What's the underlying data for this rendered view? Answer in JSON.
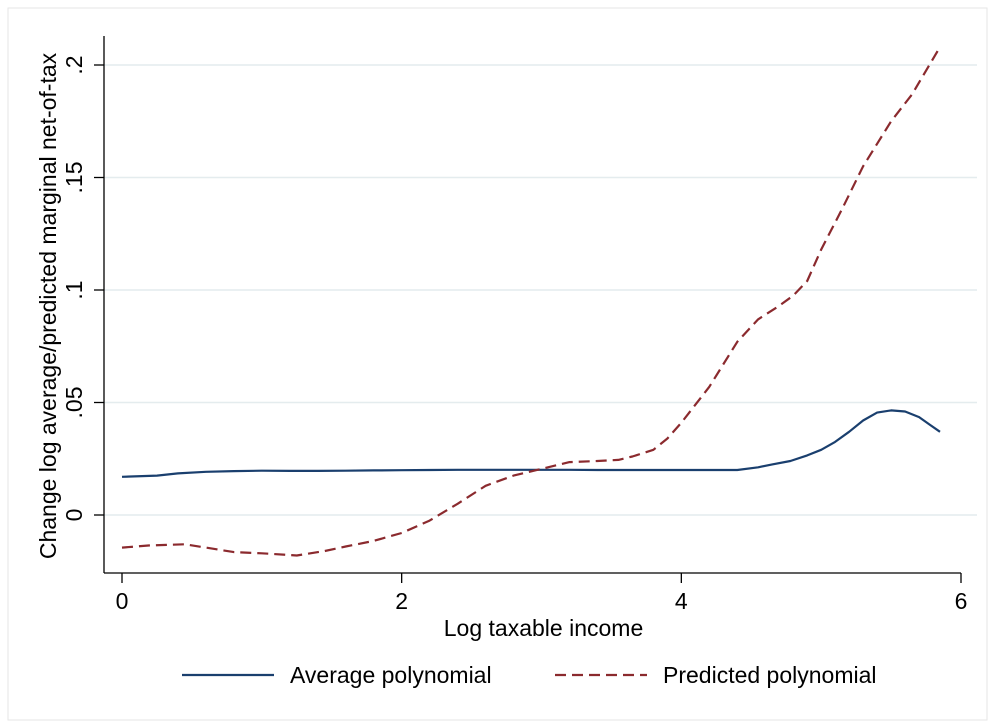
{
  "chart_data": {
    "type": "line",
    "title": "",
    "xlabel": "Log taxable income",
    "ylabel": "Change log average/predicted marginal net-of-tax",
    "xlim": [
      0,
      6
    ],
    "ylim": [
      -0.025,
      0.213
    ],
    "x_ticks": [
      {
        "value": 0,
        "label": "0"
      },
      {
        "value": 2,
        "label": "2"
      },
      {
        "value": 4,
        "label": "4"
      },
      {
        "value": 6,
        "label": "6"
      }
    ],
    "y_ticks": [
      {
        "value": 0,
        "label": "0"
      },
      {
        "value": 0.05,
        "label": ".05"
      },
      {
        "value": 0.1,
        "label": ".1"
      },
      {
        "value": 0.15,
        "label": ".15"
      },
      {
        "value": 0.2,
        "label": ".2"
      }
    ],
    "grid": true,
    "legend_position": "bottom",
    "series": [
      {
        "name": "Average polynomial",
        "color": "#1a3f6e",
        "style": "solid",
        "x": [
          0,
          0.25,
          0.4,
          0.6,
          0.8,
          1.0,
          1.2,
          1.4,
          1.6,
          1.8,
          2.0,
          2.2,
          2.4,
          2.6,
          2.8,
          3.0,
          3.2,
          3.4,
          3.6,
          3.8,
          4.0,
          4.2,
          4.4,
          4.55,
          4.65,
          4.78,
          4.9,
          5.0,
          5.1,
          5.2,
          5.3,
          5.4,
          5.5,
          5.6,
          5.7,
          5.78,
          5.85
        ],
        "y": [
          0.017,
          0.0175,
          0.0185,
          0.0192,
          0.0195,
          0.0197,
          0.0196,
          0.0196,
          0.0197,
          0.0198,
          0.0199,
          0.02,
          0.0201,
          0.0201,
          0.0201,
          0.0201,
          0.0201,
          0.02,
          0.02,
          0.02,
          0.02,
          0.02,
          0.02,
          0.0212,
          0.0225,
          0.024,
          0.0265,
          0.029,
          0.0325,
          0.037,
          0.042,
          0.0455,
          0.0465,
          0.046,
          0.0435,
          0.04,
          0.037
        ]
      },
      {
        "name": "Predicted polynomial",
        "color": "#8b2a2e",
        "style": "dashed",
        "x": [
          0,
          0.2,
          0.45,
          0.6,
          0.8,
          1.0,
          1.25,
          1.45,
          1.6,
          1.8,
          2.0,
          2.2,
          2.4,
          2.6,
          2.8,
          3.0,
          3.2,
          3.4,
          3.55,
          3.65,
          3.8,
          3.9,
          4.0,
          4.2,
          4.4,
          4.55,
          4.7,
          4.8,
          4.9,
          5.0,
          5.15,
          5.3,
          5.4,
          5.5,
          5.65,
          5.85
        ],
        "y": [
          -0.0145,
          -0.0135,
          -0.013,
          -0.0145,
          -0.0165,
          -0.017,
          -0.018,
          -0.016,
          -0.014,
          -0.0115,
          -0.008,
          -0.0025,
          0.005,
          0.013,
          0.0175,
          0.0205,
          0.0235,
          0.024,
          0.0245,
          0.026,
          0.029,
          0.034,
          0.041,
          0.057,
          0.077,
          0.087,
          0.093,
          0.0975,
          0.104,
          0.118,
          0.136,
          0.155,
          0.165,
          0.175,
          0.187,
          0.208
        ]
      }
    ]
  }
}
